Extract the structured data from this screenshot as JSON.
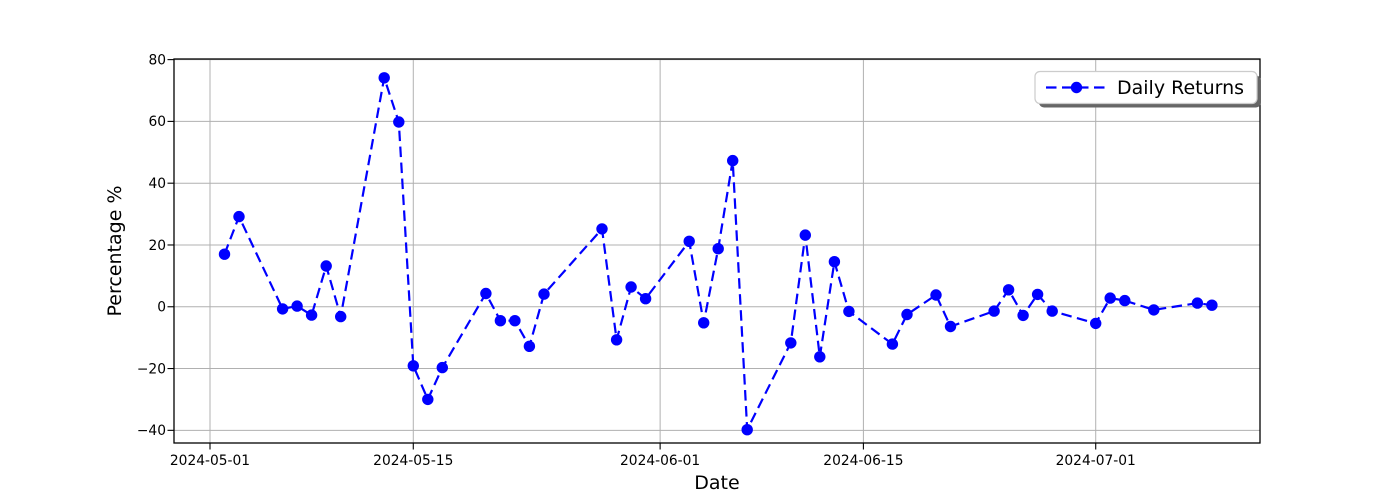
{
  "chart_data": {
    "type": "line",
    "title": "",
    "xlabel": "Date",
    "ylabel": "Percentage %",
    "x": [
      "2024-05-02",
      "2024-05-03",
      "2024-05-06",
      "2024-05-07",
      "2024-05-08",
      "2024-05-09",
      "2024-05-10",
      "2024-05-13",
      "2024-05-14",
      "2024-05-15",
      "2024-05-16",
      "2024-05-17",
      "2024-05-20",
      "2024-05-21",
      "2024-05-22",
      "2024-05-23",
      "2024-05-24",
      "2024-05-28",
      "2024-05-29",
      "2024-05-30",
      "2024-05-31",
      "2024-06-03",
      "2024-06-04",
      "2024-06-05",
      "2024-06-06",
      "2024-06-07",
      "2024-06-10",
      "2024-06-11",
      "2024-06-12",
      "2024-06-13",
      "2024-06-14",
      "2024-06-17",
      "2024-06-18",
      "2024-06-20",
      "2024-06-21",
      "2024-06-24",
      "2024-06-25",
      "2024-06-26",
      "2024-06-27",
      "2024-06-28",
      "2024-07-01",
      "2024-07-02",
      "2024-07-03",
      "2024-07-05",
      "2024-07-08",
      "2024-07-09"
    ],
    "series": [
      {
        "name": "Daily Returns",
        "values": [
          17.0,
          29.2,
          -0.7,
          0.2,
          -2.7,
          13.2,
          -3.2,
          74.1,
          59.8,
          -19.1,
          -30.0,
          -19.7,
          4.3,
          -4.5,
          -4.5,
          -12.8,
          4.1,
          25.2,
          -10.7,
          6.4,
          2.6,
          21.2,
          -5.2,
          18.8,
          47.3,
          -39.8,
          -11.7,
          23.2,
          -16.2,
          14.6,
          -1.5,
          -12.1,
          -2.5,
          3.8,
          -6.4,
          -1.4,
          5.5,
          -2.8,
          4.0,
          -1.4,
          -5.4,
          2.8,
          2.0,
          -1.0,
          1.2,
          0.5
        ]
      }
    ],
    "x_tick_labels": [
      "2024-05-01",
      "2024-05-15",
      "2024-06-01",
      "2024-06-15",
      "2024-07-01"
    ],
    "y_ticks": [
      80,
      60,
      40,
      20,
      0,
      -20,
      -40
    ],
    "y_tick_labels": [
      "80",
      "60",
      "40",
      "20",
      "0",
      "−20",
      "−40"
    ],
    "ylim": [
      -44.1,
      80.2
    ],
    "grid": true,
    "legend": {
      "label": "Daily Returns",
      "position": "upper right",
      "shadow": true
    },
    "style": {
      "line_color": "#0000ff",
      "line_style": "dashed",
      "marker": "circle",
      "grid_color": "#b0b0b0",
      "spine_color": "#000000",
      "background": "#ffffff",
      "legend_edge_color": "#cccccc",
      "legend_shadow_color": "#666666",
      "legend_face_color": "#ffffff"
    }
  }
}
